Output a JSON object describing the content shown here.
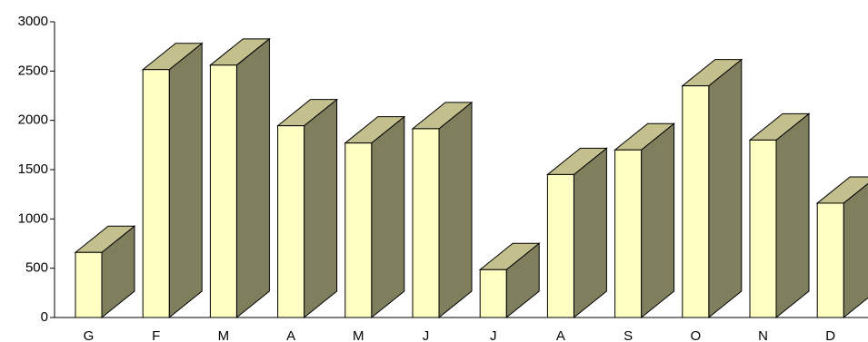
{
  "chart_data": {
    "type": "bar",
    "title": "",
    "xlabel": "",
    "ylabel": "",
    "categories": [
      "G",
      "F",
      "M",
      "A",
      "M",
      "J",
      "J",
      "A",
      "S",
      "O",
      "N",
      "D"
    ],
    "series": [
      {
        "values": [
          660,
          2515,
          2560,
          1945,
          1770,
          1915,
          485,
          1450,
          1700,
          2350,
          1800,
          1160
        ]
      }
    ],
    "ylim": [
      0,
      3000
    ],
    "yticks": [
      "0",
      "500",
      "1000",
      "1500",
      "2000",
      "2500",
      "3000"
    ],
    "grid": false,
    "legend": "none",
    "colors": {
      "front": "#ffffc4",
      "top": "#c4c08e",
      "side": "#7f7f5e",
      "outline": "#000000"
    }
  }
}
